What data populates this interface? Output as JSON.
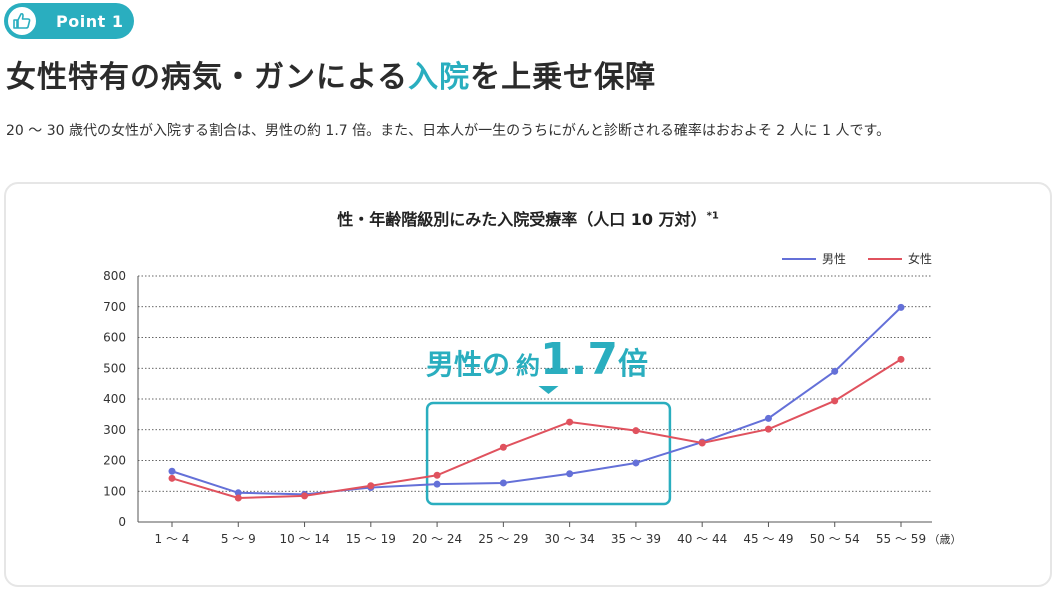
{
  "header": {
    "badge_label": "Point 1",
    "badge_icon": "thumbs-up-icon",
    "title_before": "女性特有の病気・ガンによる",
    "title_accent": "入院",
    "title_after": "を上乗せ保障",
    "subtitle": "20 〜 30 歳代の女性が入院する割合は、男性の約 1.7 倍。また、日本人が一生のうちにがんと診断される確率はおおよそ 2 人に 1 人です。"
  },
  "colors": {
    "accent": "#2aaebf",
    "male": "#6470d8",
    "female": "#e0525e"
  },
  "chart_data": {
    "type": "line",
    "title": "性・年齢階級別にみた入院受療率（人口 10 万対）",
    "title_note": "*1",
    "xlabel_unit": "（歳）",
    "categories": [
      "1 〜 4",
      "5 〜 9",
      "10 〜 14",
      "15 〜 19",
      "20 〜 24",
      "25 〜 29",
      "30 〜 34",
      "35 〜 39",
      "40 〜 44",
      "45 〜 49",
      "50 〜 54",
      "55 〜 59"
    ],
    "series": [
      {
        "name": "男性",
        "values": [
          165,
          95,
          90,
          112,
          123,
          127,
          157,
          192,
          260,
          337,
          490,
          698
        ]
      },
      {
        "name": "女性",
        "values": [
          142,
          78,
          85,
          118,
          152,
          243,
          325,
          297,
          257,
          302,
          394,
          529
        ]
      }
    ],
    "ylim": [
      0,
      800
    ],
    "yticks": [
      0,
      100,
      200,
      300,
      400,
      500,
      600,
      700,
      800
    ],
    "grid": true,
    "legend_position": "top-right",
    "annotation": {
      "text_main": "男性の",
      "text_small": "約",
      "text_number": "1.7",
      "text_unit": "倍",
      "x_range": [
        "20 〜 24",
        "35 〜 39"
      ]
    }
  }
}
